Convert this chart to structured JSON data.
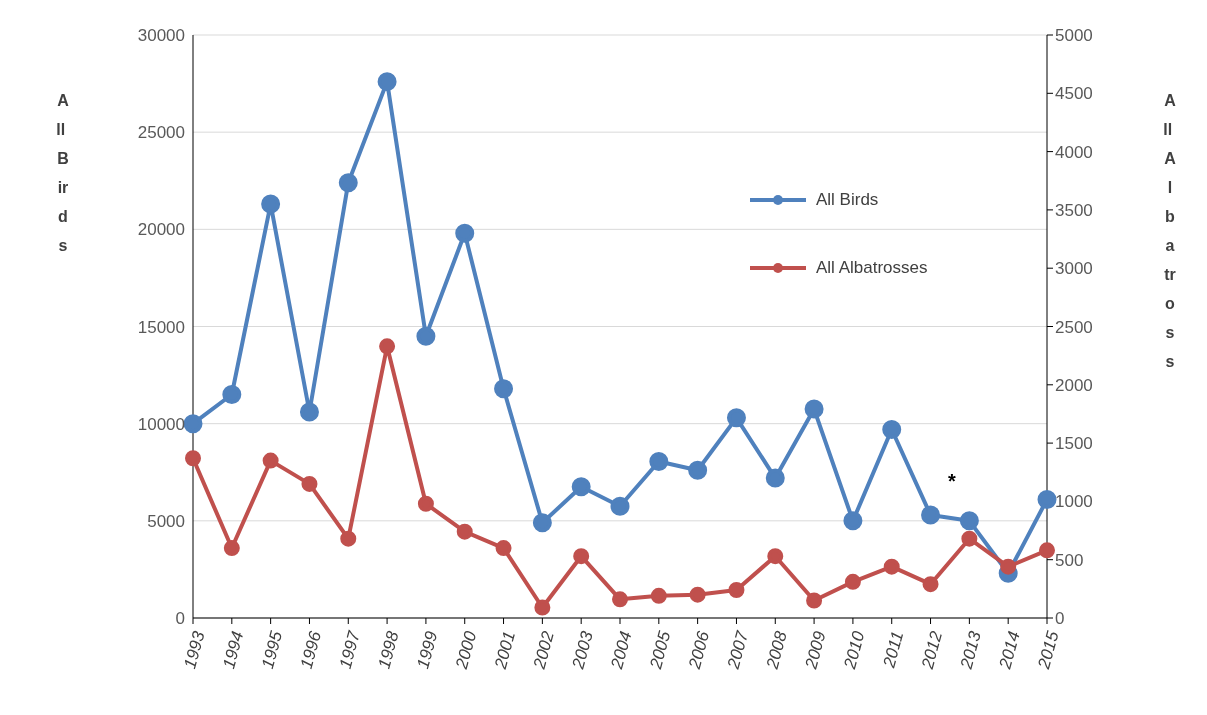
{
  "chart_data": {
    "type": "line",
    "ylabel": "All Birds",
    "y2label": "All Albatross",
    "categories": [
      "1993",
      "1994",
      "1995",
      "1996",
      "1997",
      "1998",
      "1999",
      "2000",
      "2001",
      "2002",
      "2003",
      "2004",
      "2005",
      "2006",
      "2007",
      "2008",
      "2009",
      "2010",
      "2011",
      "2012",
      "2013",
      "2014",
      "2015"
    ],
    "series": [
      {
        "name": "All Birds",
        "color": "#4f81bd",
        "values": [
          10000,
          11500,
          21300,
          10600,
          22400,
          27600,
          14500,
          19800,
          11800,
          4900,
          6750,
          5750,
          8050,
          7600,
          10300,
          7200,
          10750,
          5000,
          9700,
          5300,
          5000,
          2300,
          6100
        ]
      },
      {
        "name": "All Albatrosses",
        "color": "#c0504d",
        "axis": "y2",
        "values": [
          1370,
          600,
          1350,
          1150,
          680,
          2330,
          980,
          740,
          600,
          90,
          530,
          160,
          190,
          200,
          240,
          530,
          150,
          310,
          440,
          290,
          680,
          440,
          580
        ]
      }
    ],
    "ylim": [
      0,
      30000
    ],
    "yticks": [
      0,
      5000,
      10000,
      15000,
      20000,
      25000,
      30000
    ],
    "y2lim": [
      0,
      5000
    ],
    "y2ticks": [
      0,
      500,
      1000,
      1500,
      2000,
      2500,
      3000,
      3500,
      4000,
      4500,
      5000
    ],
    "annotations": [
      "*"
    ],
    "grid": "y",
    "legend": "top right",
    "marker": "circle",
    "line_style": "solid"
  }
}
